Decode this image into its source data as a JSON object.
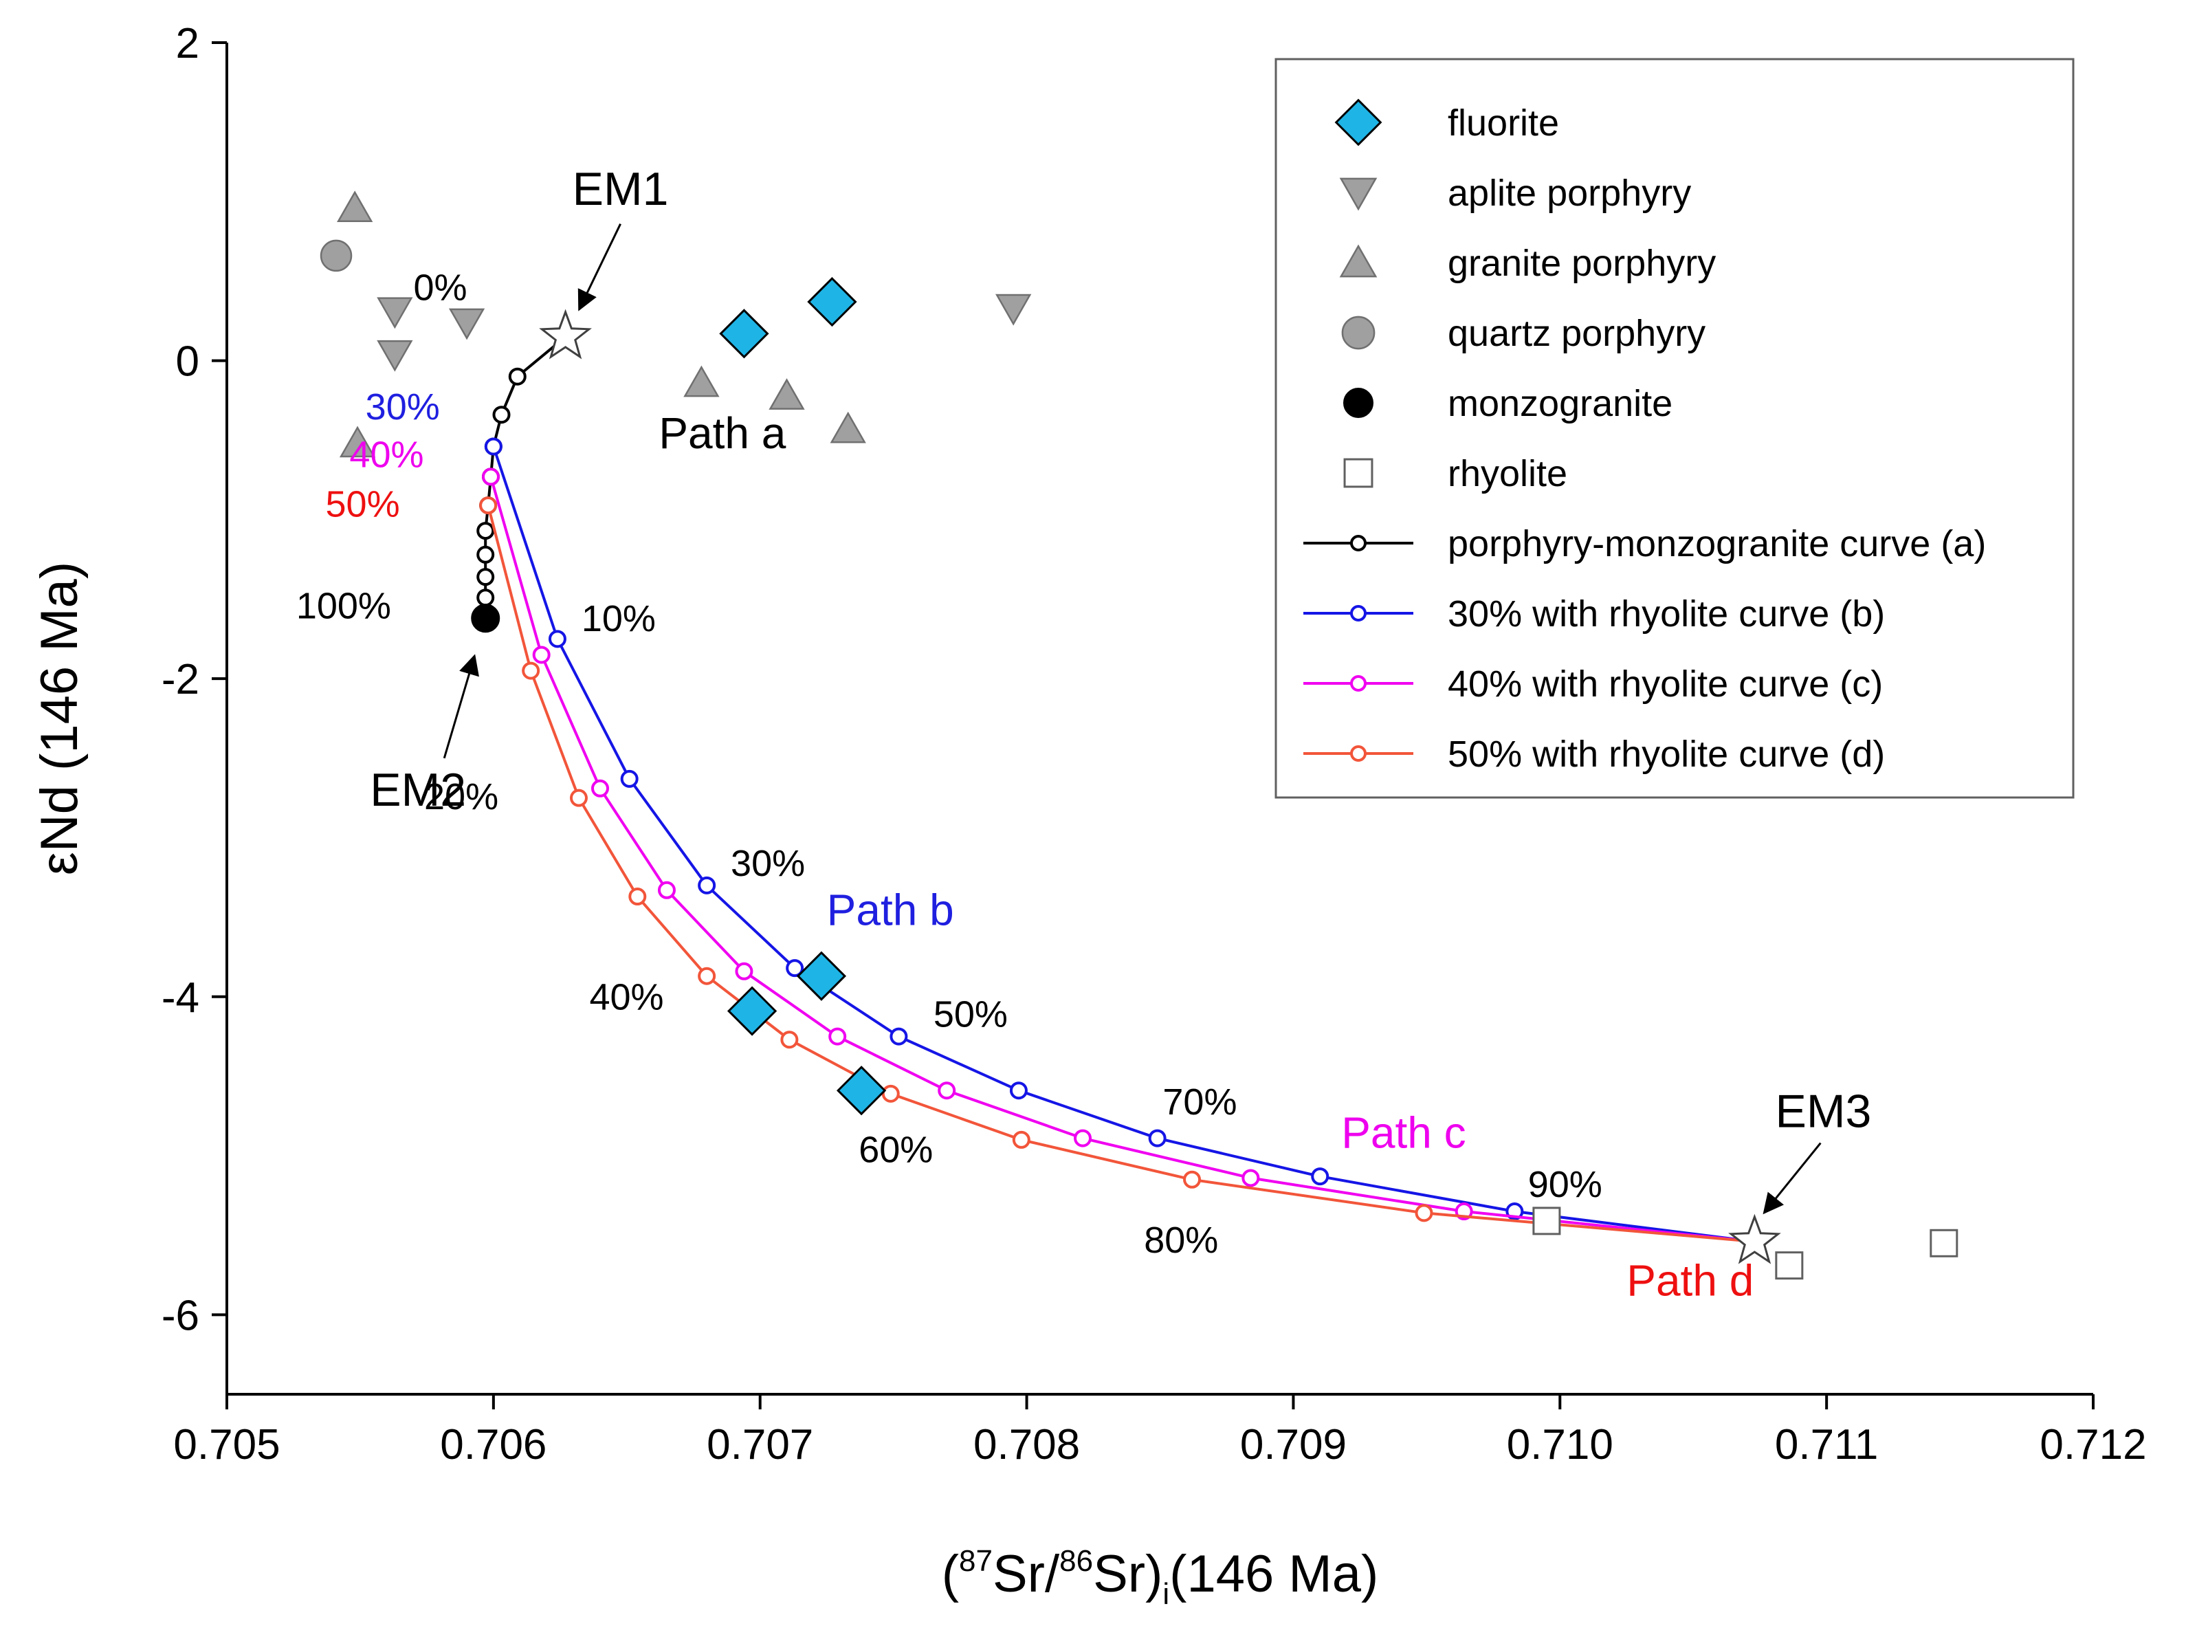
{
  "chart_data": {
    "type": "scatter",
    "xlabel": "(87Sr/86Sr)i(146 Ma)",
    "xlabel_parts": {
      "open": "(",
      "sup1": "87",
      "mid": "Sr/",
      "sup2": "86",
      "close": "Sr)",
      "sub": "i",
      "tail": "(146 Ma)"
    },
    "ylabel": "εNd (146 Ma)",
    "xlim": [
      0.705,
      0.712
    ],
    "ylim": [
      -6.5,
      2
    ],
    "xticks": [
      0.705,
      0.706,
      0.707,
      0.708,
      0.709,
      0.71,
      0.711,
      0.712
    ],
    "xtick_labels": [
      "0.705",
      "0.706",
      "0.707",
      "0.708",
      "0.709",
      "0.710",
      "0.711",
      "0.712"
    ],
    "yticks": [
      2,
      0,
      -2,
      -4,
      -6
    ],
    "ytick_labels": [
      "2",
      "0",
      "-2",
      "-4",
      "-6"
    ],
    "colors": {
      "fluorite": "#1fb4e6",
      "gray": "#a0a0a0",
      "curve_a": "#000000",
      "curve_b": "#1515e6",
      "curve_c": "#f000f0",
      "curve_d": "#f2553a",
      "text_blue": "#1f1fe0",
      "text_magenta": "#ee00ee",
      "text_red": "#ee1010"
    },
    "series": [
      {
        "name": "fluorite",
        "marker": "diamond",
        "points": [
          [
            0.70694,
            0.17
          ],
          [
            0.70727,
            0.37
          ],
          [
            0.70723,
            -3.87
          ],
          [
            0.70697,
            -4.09
          ],
          [
            0.70738,
            -4.59
          ]
        ]
      },
      {
        "name": "aplite porphyry",
        "marker": "triangle-down",
        "points": [
          [
            0.70563,
            0.31
          ],
          [
            0.70563,
            0.04
          ],
          [
            0.7059,
            0.24
          ],
          [
            0.70795,
            0.33
          ]
        ]
      },
      {
        "name": "granite porphyry",
        "marker": "triangle-up",
        "points": [
          [
            0.70548,
            0.96
          ],
          [
            0.70549,
            -0.52
          ],
          [
            0.70678,
            -0.14
          ],
          [
            0.7071,
            -0.22
          ],
          [
            0.70733,
            -0.43
          ]
        ]
      },
      {
        "name": "quartz porphyry",
        "marker": "circle",
        "points": [
          [
            0.70541,
            0.66
          ]
        ]
      },
      {
        "name": "monzogranite",
        "marker": "filled-circle",
        "points": [
          [
            0.70597,
            -1.62
          ]
        ]
      },
      {
        "name": "rhyolite",
        "marker": "square",
        "points": [
          [
            0.70995,
            -5.41
          ],
          [
            0.71086,
            -5.69
          ],
          [
            0.71144,
            -5.55
          ]
        ]
      }
    ],
    "curves": [
      {
        "name": "porphyry-monzogranite curve (a)",
        "color_key": "curve_a",
        "points": [
          [
            0.70627,
            0.15
          ],
          [
            0.70609,
            -0.1
          ],
          [
            0.70603,
            -0.34
          ],
          [
            0.706,
            -0.54
          ],
          [
            0.70599,
            -0.73
          ],
          [
            0.70598,
            -0.91
          ],
          [
            0.70597,
            -1.07
          ],
          [
            0.70597,
            -1.22
          ],
          [
            0.70597,
            -1.36
          ],
          [
            0.70597,
            -1.49
          ],
          [
            0.70597,
            -1.62
          ]
        ]
      },
      {
        "name": "30% with rhyolite curve (b)",
        "color_key": "curve_b",
        "points": [
          [
            0.706,
            -0.54
          ],
          [
            0.70624,
            -1.75
          ],
          [
            0.70651,
            -2.63
          ],
          [
            0.7068,
            -3.3
          ],
          [
            0.70713,
            -3.82
          ],
          [
            0.70752,
            -4.25
          ],
          [
            0.70797,
            -4.59
          ],
          [
            0.70849,
            -4.89
          ],
          [
            0.7091,
            -5.13
          ],
          [
            0.70983,
            -5.35
          ],
          [
            0.71073,
            -5.54
          ]
        ]
      },
      {
        "name": "40% with rhyolite curve (c)",
        "color_key": "curve_c",
        "points": [
          [
            0.70599,
            -0.73
          ],
          [
            0.70618,
            -1.85
          ],
          [
            0.7064,
            -2.69
          ],
          [
            0.70665,
            -3.33
          ],
          [
            0.70694,
            -3.84
          ],
          [
            0.70729,
            -4.25
          ],
          [
            0.7077,
            -4.59
          ],
          [
            0.70821,
            -4.89
          ],
          [
            0.70884,
            -5.14
          ],
          [
            0.70964,
            -5.35
          ],
          [
            0.71073,
            -5.54
          ]
        ]
      },
      {
        "name": "50% with rhyolite curve (d)",
        "color_key": "curve_d",
        "points": [
          [
            0.70598,
            -0.91
          ],
          [
            0.70614,
            -1.95
          ],
          [
            0.70632,
            -2.75
          ],
          [
            0.70654,
            -3.37
          ],
          [
            0.7068,
            -3.87
          ],
          [
            0.70711,
            -4.27
          ],
          [
            0.70749,
            -4.61
          ],
          [
            0.70798,
            -4.9
          ],
          [
            0.70862,
            -5.15
          ],
          [
            0.70949,
            -5.36
          ],
          [
            0.71073,
            -5.54
          ]
        ]
      }
    ],
    "endmembers": [
      {
        "label": "EM1",
        "point": [
          0.70627,
          0.15
        ]
      },
      {
        "label": "EM3",
        "point": [
          0.71073,
          -5.54
        ]
      }
    ],
    "em2_label": "EM2",
    "annotations": [
      {
        "text": "0%",
        "color_key": "curve_a",
        "pos": [
          0.7057,
          0.38
        ]
      },
      {
        "text": "30%",
        "color_key": "text_blue",
        "pos": [
          0.70552,
          -0.37
        ]
      },
      {
        "text": "40%",
        "color_key": "text_magenta",
        "pos": [
          0.70546,
          -0.67
        ]
      },
      {
        "text": "50%",
        "color_key": "text_red",
        "pos": [
          0.70537,
          -0.98
        ]
      },
      {
        "text": "100%",
        "color_key": "curve_a",
        "pos": [
          0.70526,
          -1.62
        ]
      },
      {
        "text": "10%",
        "color_key": "curve_a",
        "pos": [
          0.70633,
          -1.7
        ]
      },
      {
        "text": "20%",
        "color_key": "curve_a",
        "pos": [
          0.70574,
          -2.82
        ]
      },
      {
        "text": "30%",
        "color_key": "curve_a",
        "pos": [
          0.70689,
          -3.24
        ]
      },
      {
        "text": "40%",
        "color_key": "curve_a",
        "pos": [
          0.70636,
          -4.08
        ]
      },
      {
        "text": "50%",
        "color_key": "curve_a",
        "pos": [
          0.70765,
          -4.19
        ]
      },
      {
        "text": "60%",
        "color_key": "curve_a",
        "pos": [
          0.70737,
          -5.04
        ]
      },
      {
        "text": "70%",
        "color_key": "curve_a",
        "pos": [
          0.70851,
          -4.74
        ]
      },
      {
        "text": "80%",
        "color_key": "curve_a",
        "pos": [
          0.70844,
          -5.61
        ]
      },
      {
        "text": "90%",
        "color_key": "curve_a",
        "pos": [
          0.70988,
          -5.26
        ]
      }
    ],
    "path_labels": [
      {
        "text": "Path a",
        "color_key": "curve_a",
        "pos": [
          0.70662,
          -0.55
        ]
      },
      {
        "text": "Path b",
        "color_key": "text_blue",
        "pos": [
          0.70725,
          -3.55
        ]
      },
      {
        "text": "Path c",
        "color_key": "text_magenta",
        "pos": [
          0.70918,
          -4.95
        ]
      },
      {
        "text": "Path d",
        "color_key": "text_red",
        "pos": [
          0.71025,
          -5.88
        ]
      }
    ],
    "legend": {
      "position": "top-right",
      "entries": [
        {
          "label": "fluorite",
          "marker": "diamond"
        },
        {
          "label": "aplite porphyry",
          "marker": "triangle-down"
        },
        {
          "label": "granite porphyry",
          "marker": "triangle-up"
        },
        {
          "label": "quartz porphyry",
          "marker": "circle"
        },
        {
          "label": "monzogranite",
          "marker": "filled-circle"
        },
        {
          "label": "rhyolite",
          "marker": "square"
        },
        {
          "label": "porphyry-monzogranite curve (a)",
          "marker": "line-a"
        },
        {
          "label": "30% with rhyolite curve (b)",
          "marker": "line-b"
        },
        {
          "label": "40% with rhyolite curve (c)",
          "marker": "line-c"
        },
        {
          "label": "50% with rhyolite curve (d)",
          "marker": "line-d"
        }
      ]
    }
  }
}
